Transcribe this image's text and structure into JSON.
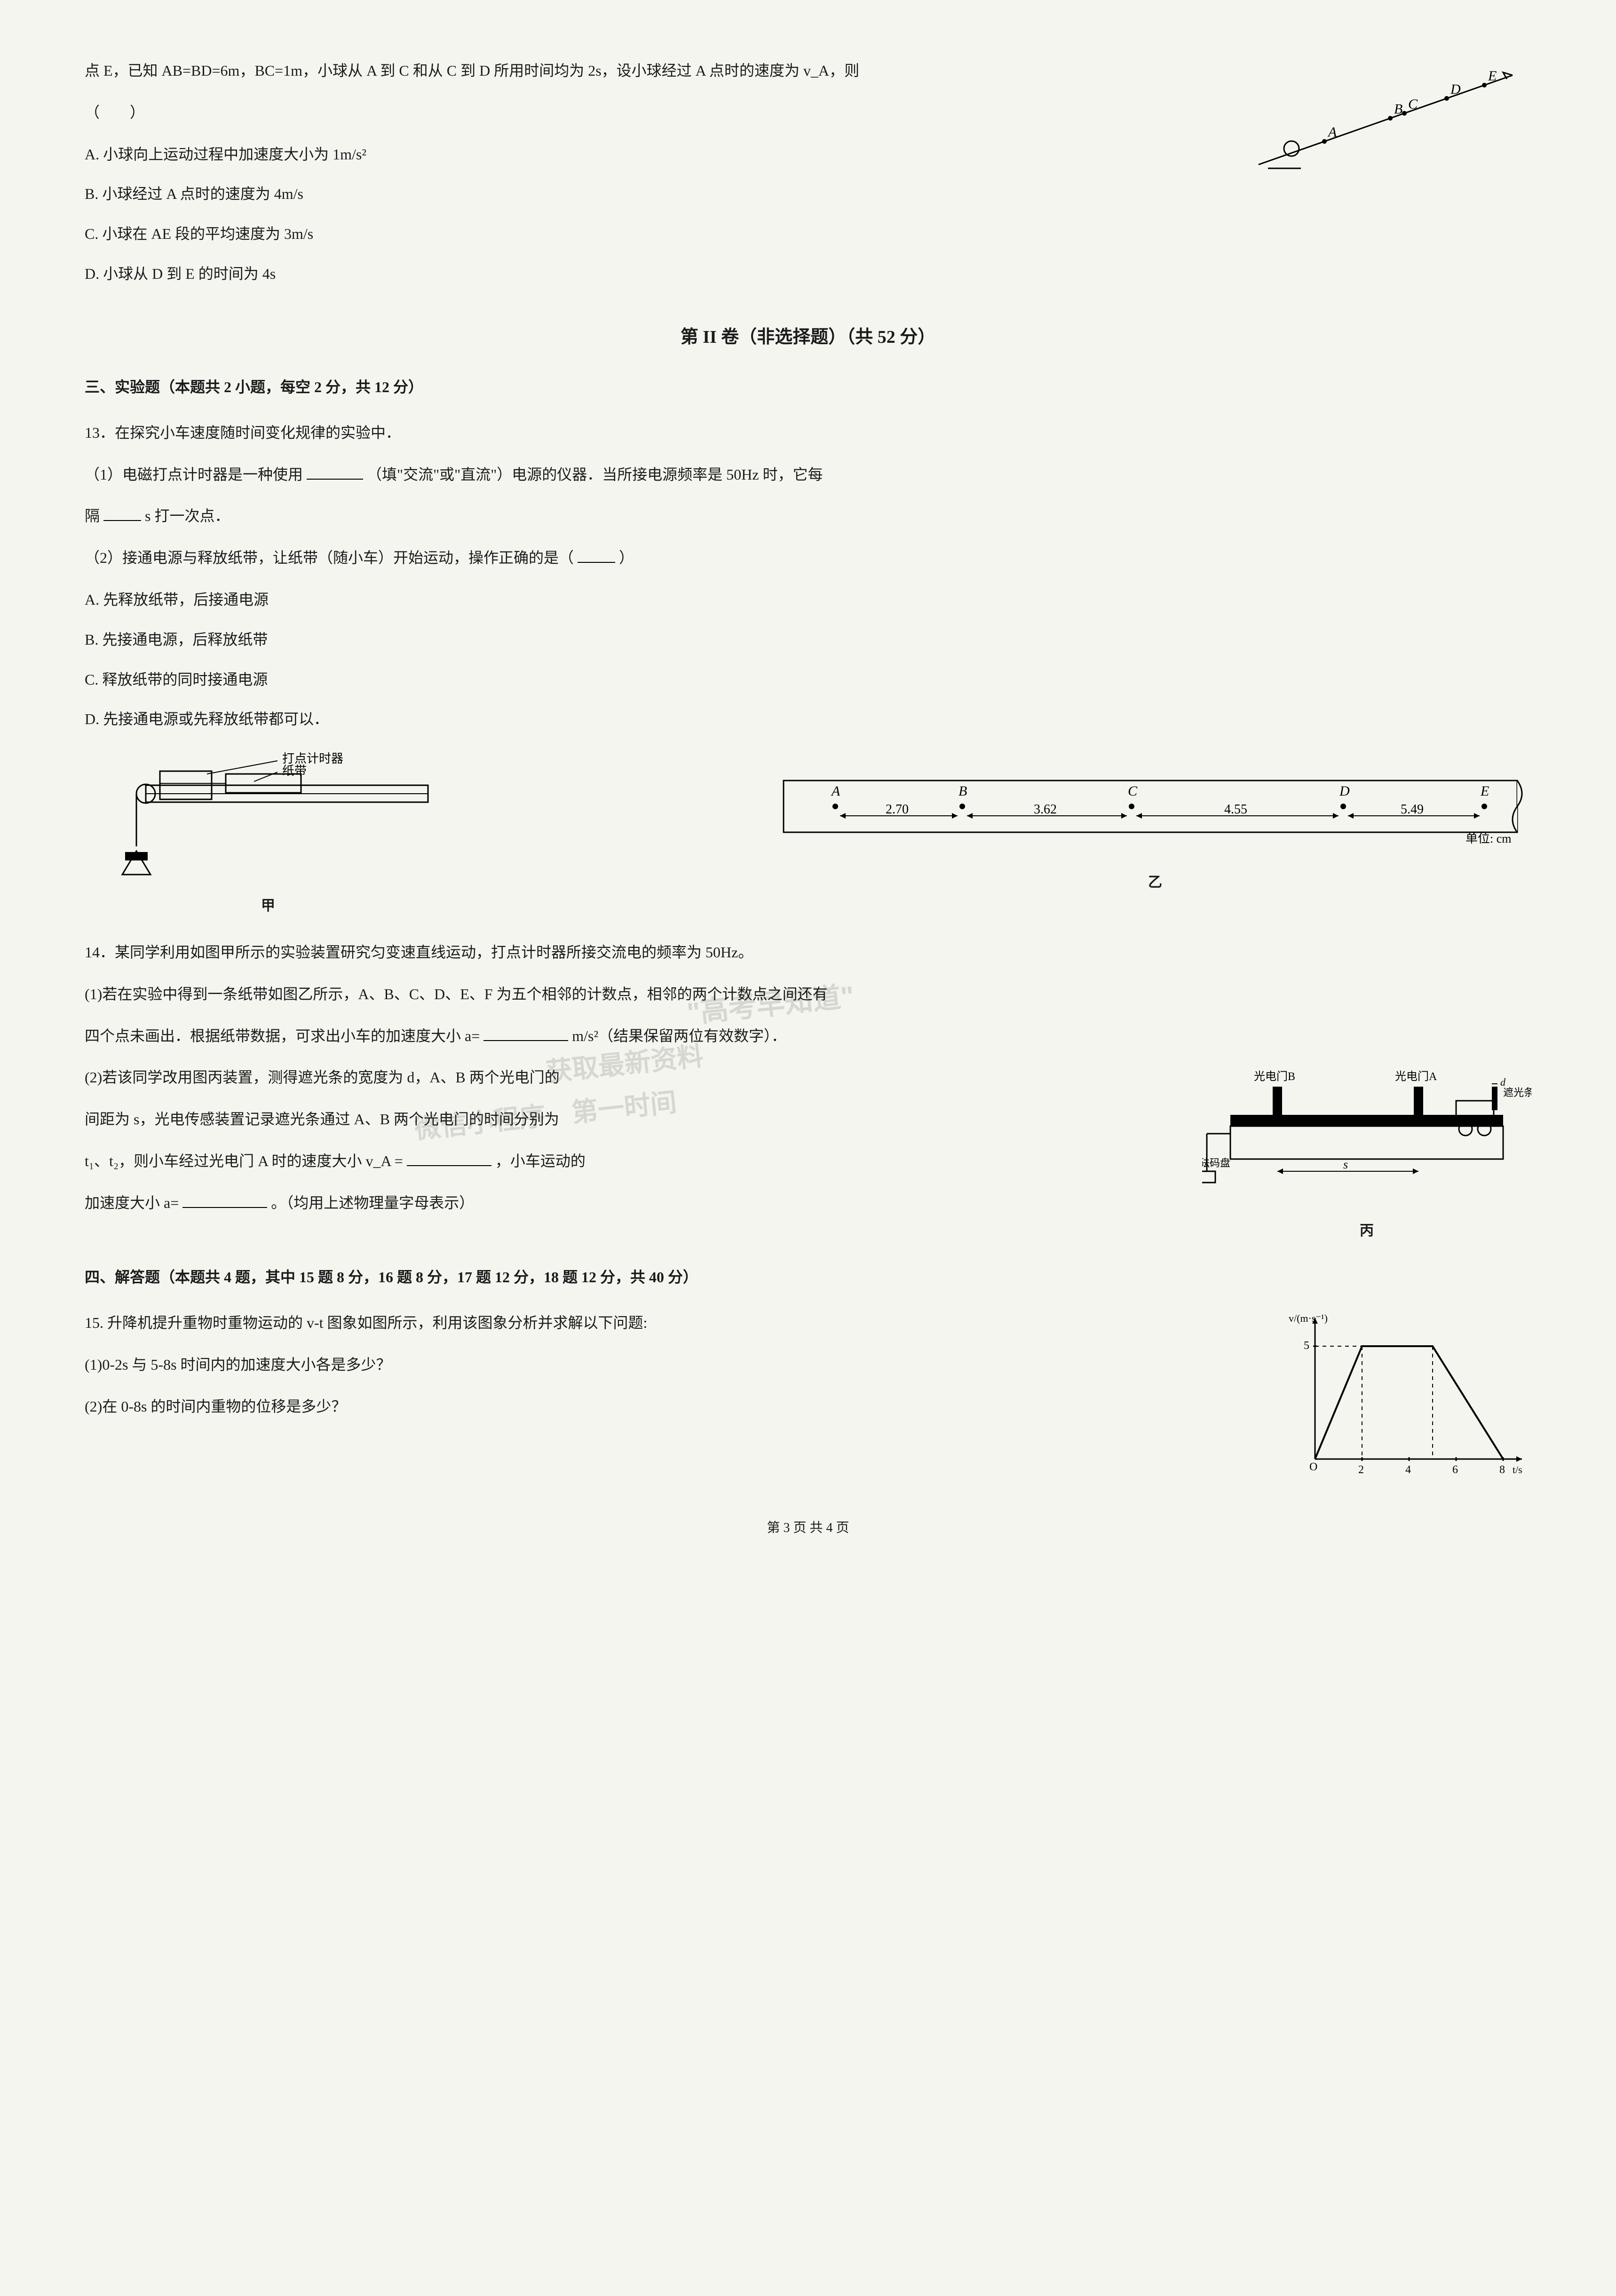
{
  "q12": {
    "stem_cont": "点 E，已知 AB=BD=6m，BC=1m，小球从 A 到 C 和从 C 到 D 所用时间均为 2s，设小球经过 A 点时的速度为 v_A，则",
    "paren": "（　　）",
    "optA": "A. 小球向上运动过程中加速度大小为 1m/s²",
    "optB": "B. 小球经过 A 点时的速度为 4m/s",
    "optC": "C. 小球在 AE 段的平均速度为 3m/s",
    "optD": "D. 小球从 D 到 E 的时间为 4s",
    "incline_points": [
      "A",
      "B",
      "C",
      "D",
      "E"
    ]
  },
  "section2_title": "第 II 卷（非选择题）（共 52 分）",
  "experiment_title": "三、实验题（本题共 2 小题，每空 2 分，共 12 分）",
  "q13": {
    "stem": "13．在探究小车速度随时间变化规律的实验中．",
    "p1_a": "（1）电磁打点计时器是一种使用",
    "p1_b": "（填\"交流\"或\"直流\"）电源的仪器．当所接电源频率是 50Hz 时，它每",
    "p1_c": "隔",
    "p1_d": "s 打一次点．",
    "p2_a": "（2）接通电源与释放纸带，让纸带（随小车）开始运动，操作正确的是（",
    "p2_b": "）",
    "optA": "A. 先释放纸带，后接通电源",
    "optB": "B. 先接通电源，后释放纸带",
    "optC": "C. 释放纸带的同时接通电源",
    "optD": "D. 先接通电源或先释放纸带都可以．",
    "app_labels": {
      "timer": "打点计时器",
      "tape": "纸带",
      "jia": "甲",
      "yi": "乙",
      "unit": "单位: cm"
    },
    "tape": {
      "points": [
        "A",
        "B",
        "C",
        "D",
        "E"
      ],
      "segs": [
        "2.70",
        "3.62",
        "4.55",
        "5.49"
      ]
    }
  },
  "q14": {
    "stem": "14．某同学利用如图甲所示的实验装置研究匀变速直线运动，打点计时器所接交流电的频率为 50Hz。",
    "p1_a": "(1)若在实验中得到一条纸带如图乙所示，A、B、C、D、E、F 为五个相邻的计数点，相邻的两个计数点之间还有",
    "p1_b": "四个点未画出．根据纸带数据，可求出小车的加速度大小 a=",
    "p1_c": "m/s²（结果保留两位有效数字）．",
    "p2_a": "(2)若该同学改用图丙装置，测得遮光条的宽度为 d，A、B 两个光电门的",
    "p2_b": "间距为 s，光电传感装置记录遮光条通过 A、B 两个光电门的时间分别为",
    "p2_c": "t₁、t₂，则小车经过光电门 A 时的速度大小 v_A =",
    "p2_d": "，小车运动的",
    "p2_e": "加速度大小 a=",
    "p2_f": "。（均用上述物理量字母表示）",
    "fig_labels": {
      "gateB": "光电门B",
      "gateA": "光电门A",
      "strip": "遮光条",
      "weight": "砝码盘",
      "s": "s",
      "d": "d",
      "bing": "丙"
    }
  },
  "solve_title": "四、解答题（本题共 4 题，其中 15 题 8 分，16 题 8 分，17 题 12 分，18 题 12 分，共 40 分）",
  "q15": {
    "stem": "15.  升降机提升重物时重物运动的 v-t 图象如图所示，利用该图象分析并求解以下问题:",
    "p1": "(1)0-2s 与 5-8s 时间内的加速度大小各是多少？",
    "p2": "(2)在 0-8s 的时间内重物的位移是多少？",
    "vt": {
      "vmax": 5,
      "t_pts": [
        0,
        2,
        4,
        6,
        8
      ],
      "ylab": "v/(m·s⁻¹)",
      "xlab": "t/s"
    }
  },
  "footer": "第 3 页 共 4 页",
  "watermark": {
    "a": "\"高考早知道\"",
    "b": "获取最新资料",
    "c": "微信小程序　第一时间"
  }
}
